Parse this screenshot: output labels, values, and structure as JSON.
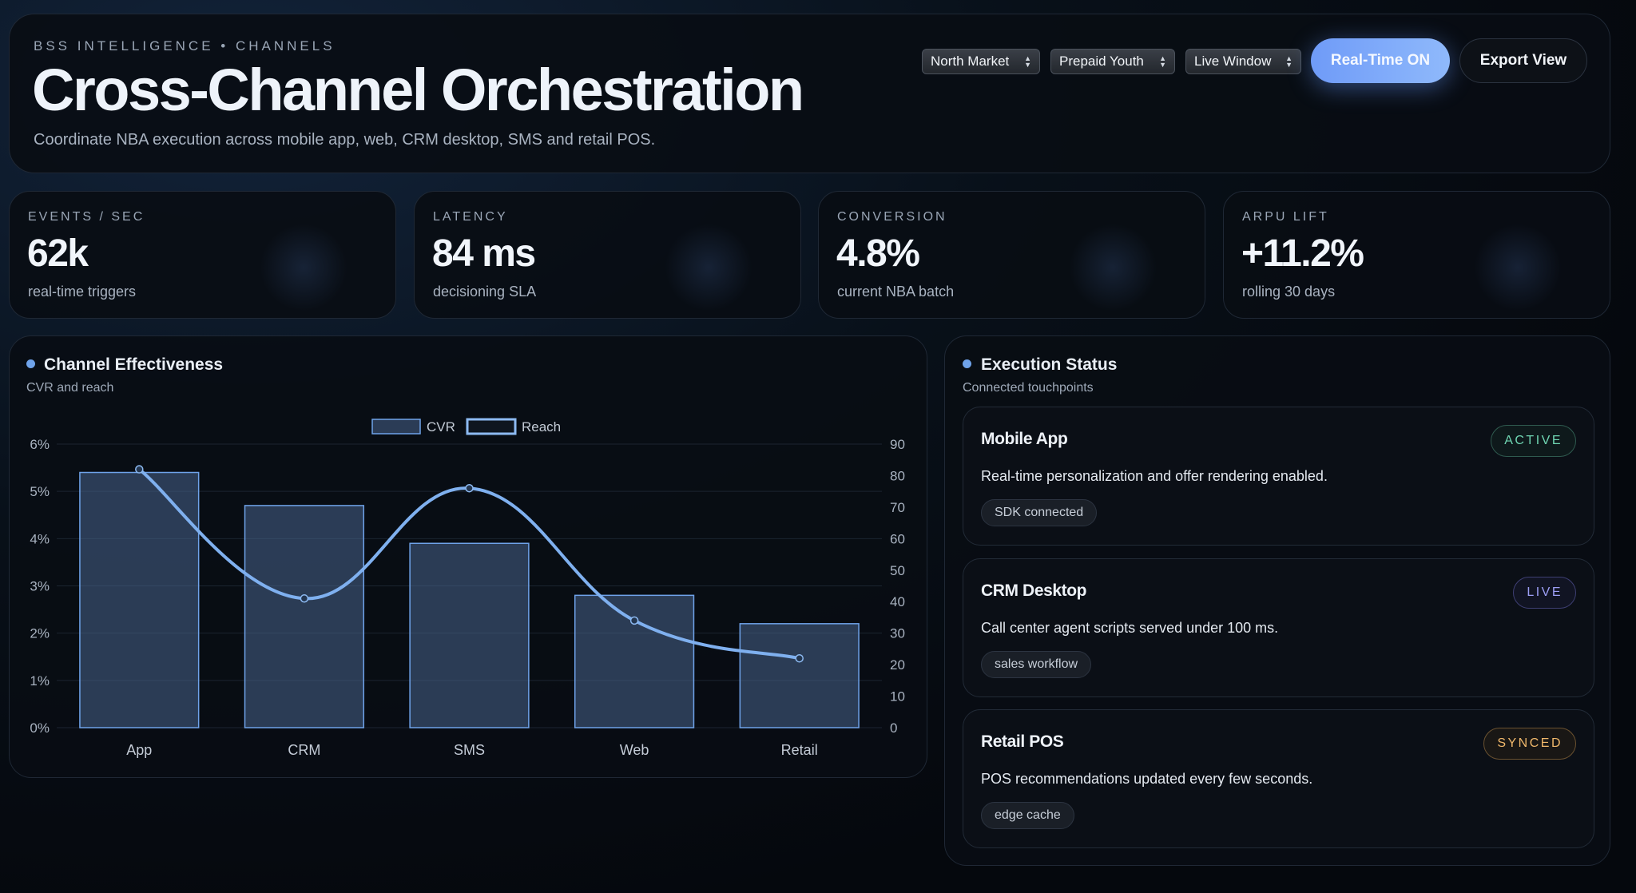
{
  "header": {
    "eyebrow": "BSS INTELLIGENCE • CHANNELS",
    "title": "Cross-Channel Orchestration",
    "subtitle": "Coordinate NBA execution across mobile app, web, CRM desktop, SMS and retail POS.",
    "filters": [
      {
        "value": "North Market"
      },
      {
        "value": "Prepaid Youth"
      },
      {
        "value": "Live Window"
      }
    ],
    "primary_button": "Real-Time ON",
    "secondary_button": "Export View"
  },
  "kpis": [
    {
      "label": "EVENTS / SEC",
      "value": "62k",
      "sub": "real-time triggers"
    },
    {
      "label": "LATENCY",
      "value": "84 ms",
      "sub": "decisioning SLA"
    },
    {
      "label": "CONVERSION",
      "value": "4.8%",
      "sub": "current NBA batch"
    },
    {
      "label": "ARPU LIFT",
      "value": "+11.2%",
      "sub": "rolling 30 days"
    }
  ],
  "chart_section": {
    "title": "Channel Effectiveness",
    "subtitle": "CVR and reach"
  },
  "chart_data": {
    "type": "bar",
    "categories": [
      "App",
      "CRM",
      "SMS",
      "Web",
      "Retail"
    ],
    "series": [
      {
        "name": "CVR",
        "type": "bar",
        "axis": "left",
        "values": [
          5.4,
          4.7,
          3.9,
          2.8,
          2.2
        ],
        "color": "#6fa3ea"
      },
      {
        "name": "Reach",
        "type": "line",
        "axis": "right",
        "values": [
          82,
          41,
          76,
          34,
          22
        ],
        "color": "#7fb0ef"
      }
    ],
    "y_left": {
      "min": 0,
      "max": 6,
      "ticks": [
        "0%",
        "1%",
        "2%",
        "3%",
        "4%",
        "5%",
        "6%"
      ]
    },
    "y_right": {
      "min": 0,
      "max": 90,
      "ticks": [
        "0",
        "10",
        "20",
        "30",
        "40",
        "50",
        "60",
        "70",
        "80",
        "90"
      ]
    },
    "legend": "top",
    "grid": true
  },
  "status_section": {
    "title": "Execution Status",
    "subtitle": "Connected touchpoints",
    "items": [
      {
        "name": "Mobile App",
        "badge": "ACTIVE",
        "description": "Real-time personalization and offer rendering enabled.",
        "tag": "SDK connected"
      },
      {
        "name": "CRM Desktop",
        "badge": "LIVE",
        "description": "Call center agent scripts served under 100 ms.",
        "tag": "sales workflow"
      },
      {
        "name": "Retail POS",
        "badge": "SYNCED",
        "description": "POS recommendations updated every few seconds.",
        "tag": "edge cache"
      }
    ]
  },
  "colors": {
    "accent": "#6fa3ea",
    "active": "#6fd5b2",
    "live": "#9d9ff5",
    "synced": "#f0b86b"
  }
}
